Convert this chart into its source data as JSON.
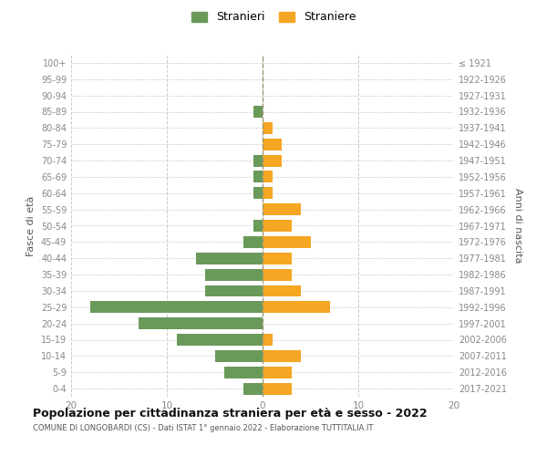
{
  "age_groups": [
    "0-4",
    "5-9",
    "10-14",
    "15-19",
    "20-24",
    "25-29",
    "30-34",
    "35-39",
    "40-44",
    "45-49",
    "50-54",
    "55-59",
    "60-64",
    "65-69",
    "70-74",
    "75-79",
    "80-84",
    "85-89",
    "90-94",
    "95-99",
    "100+"
  ],
  "birth_years": [
    "2017-2021",
    "2012-2016",
    "2007-2011",
    "2002-2006",
    "1997-2001",
    "1992-1996",
    "1987-1991",
    "1982-1986",
    "1977-1981",
    "1972-1976",
    "1967-1971",
    "1962-1966",
    "1957-1961",
    "1952-1956",
    "1947-1951",
    "1942-1946",
    "1937-1941",
    "1932-1936",
    "1927-1931",
    "1922-1926",
    "≤ 1921"
  ],
  "males": [
    2,
    4,
    5,
    9,
    13,
    18,
    6,
    6,
    7,
    2,
    1,
    0,
    1,
    1,
    1,
    0,
    0,
    1,
    0,
    0,
    0
  ],
  "females": [
    3,
    3,
    4,
    1,
    0,
    7,
    4,
    3,
    3,
    5,
    3,
    4,
    1,
    1,
    2,
    2,
    1,
    0,
    0,
    0,
    0
  ],
  "male_color": "#6a9a5a",
  "female_color": "#f5a623",
  "male_label": "Stranieri",
  "female_label": "Straniere",
  "title": "Popolazione per cittadinanza straniera per età e sesso - 2022",
  "subtitle": "COMUNE DI LONGOBARDI (CS) - Dati ISTAT 1° gennaio 2022 - Elaborazione TUTTITALIA.IT",
  "ylabel_left": "Fasce di età",
  "ylabel_right": "Anni di nascita",
  "xlim": 20,
  "background_color": "#ffffff",
  "grid_color": "#cccccc",
  "axis_label_color": "#555555",
  "tick_color": "#888888"
}
